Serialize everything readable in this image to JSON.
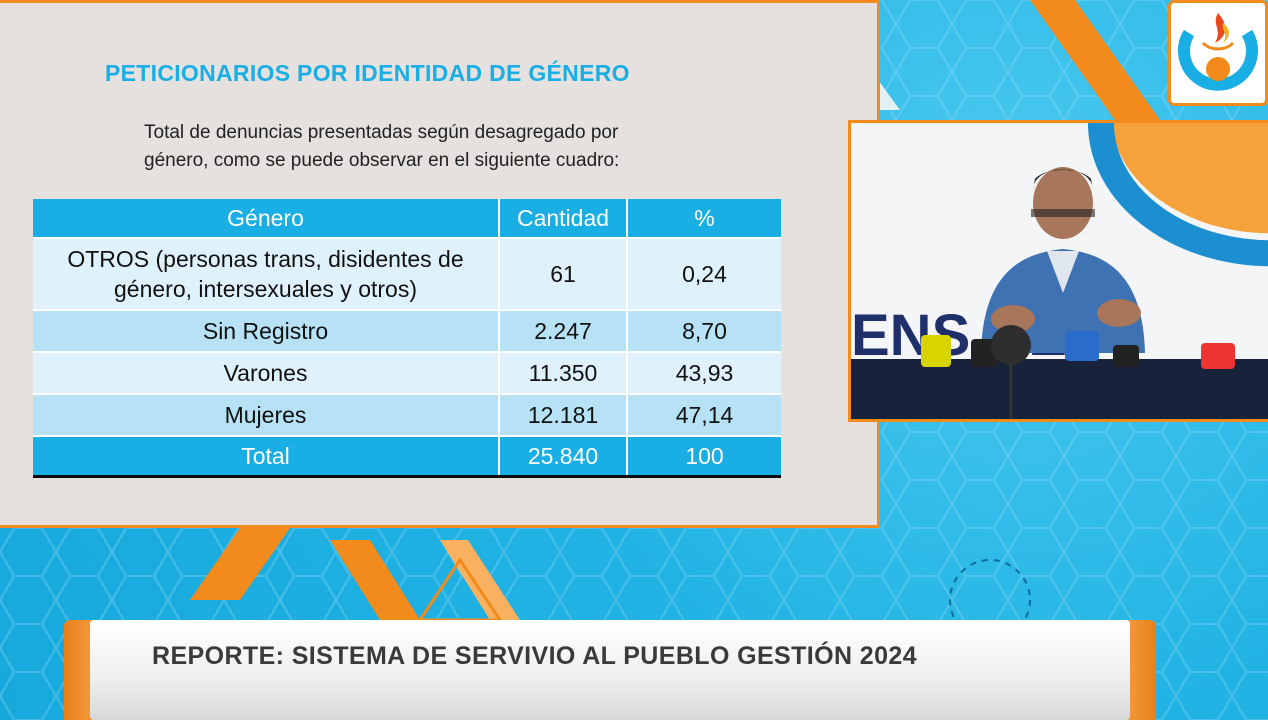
{
  "slide": {
    "title": "PETICIONARIOS POR IDENTIDAD DE GÉNERO",
    "intro_line1": "Total de denuncias presentadas según desagregado por",
    "intro_line2": "género, como se puede observar en el siguiente cuadro:",
    "table": {
      "headers": [
        "Género",
        "Cantidad",
        "%"
      ],
      "rows": [
        {
          "genero_line1": "OTROS (personas trans, disidentes de",
          "genero_line2": "género, intersexuales y otros)",
          "cantidad": "61",
          "porcentaje": "0,24"
        },
        {
          "genero": "Sin Registro",
          "cantidad": "2.247",
          "porcentaje": "8,70"
        },
        {
          "genero": "Varones",
          "cantidad": "11.350",
          "porcentaje": "43,93"
        },
        {
          "genero": "Mujeres",
          "cantidad": "12.181",
          "porcentaje": "47,14"
        }
      ],
      "total": {
        "label": "Total",
        "cantidad": "25.840",
        "porcentaje": "100"
      }
    }
  },
  "camera": {
    "backdrop_text": "ENS  DEF",
    "icon": "person-speaking-at-press-conference"
  },
  "logo": {
    "icon": "institution-logo-flame"
  },
  "lower_third": {
    "text": "REPORTE: SISTEMA DE SERVIVIO AL PUEBLO GESTIÓN 2024"
  },
  "colors": {
    "accent_blue": "#19aee4",
    "accent_orange": "#f28a1c",
    "row_light": "#dff2fb",
    "row_mid": "#b7e2f5"
  }
}
